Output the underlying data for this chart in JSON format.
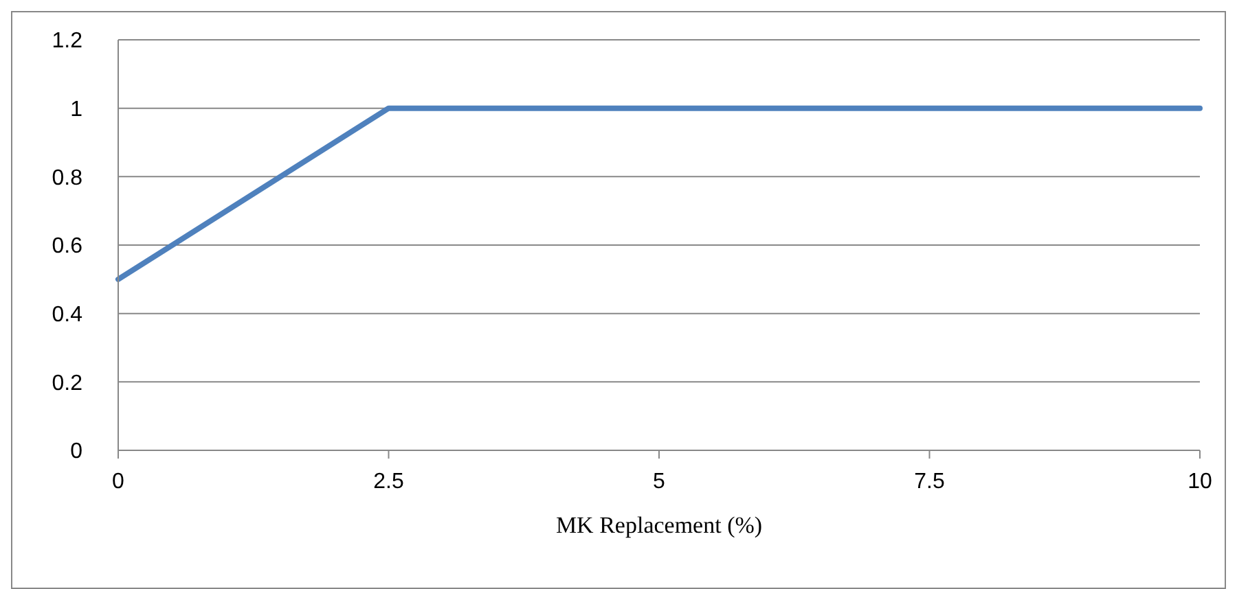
{
  "chart_data": {
    "type": "line",
    "xlabel": "MK Replacement (%)",
    "categories": [
      "0",
      "2.5",
      "5",
      "7.5",
      "10"
    ],
    "series": [
      {
        "color": "#4f81bd",
        "values": [
          0.5,
          1,
          1,
          1,
          1
        ]
      }
    ],
    "ylim": [
      0,
      1.2
    ],
    "yticks": [
      0,
      0.2,
      0.4,
      0.6,
      0.8,
      1,
      1.2
    ],
    "grid": "y",
    "legend": false,
    "marker": "none",
    "line_style": "solid"
  }
}
